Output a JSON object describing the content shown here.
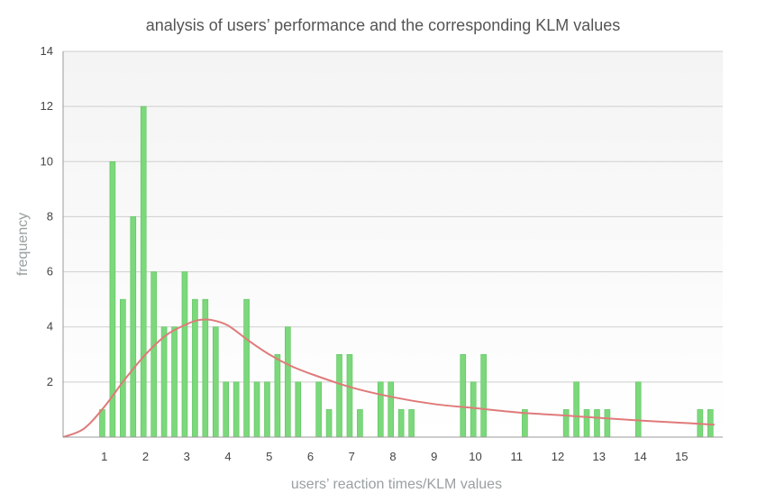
{
  "chart_data": {
    "type": "bar",
    "title": "analysis of users’ performance and the corresponding KLM values",
    "xlabel": "users’ reaction times/KLM values",
    "ylabel": "frequency",
    "xlim": [
      0,
      16
    ],
    "ylim": [
      0,
      14
    ],
    "xticks": [
      1,
      2,
      3,
      4,
      5,
      6,
      7,
      8,
      9,
      10,
      11,
      12,
      13,
      14,
      15
    ],
    "yticks": [
      2,
      4,
      6,
      8,
      10,
      12,
      14
    ],
    "grid": true,
    "legend": "none",
    "colors": {
      "bars": "#7bd87b",
      "bar_edge": "#5cc45c",
      "curve": "#e07a7a"
    },
    "series": [
      {
        "type": "bar",
        "x": [
          0.95,
          1.2,
          1.45,
          1.7,
          1.95,
          2.2,
          2.45,
          2.7,
          2.95,
          3.2,
          3.45,
          3.7,
          3.95,
          4.2,
          4.45,
          4.7,
          4.95,
          5.2,
          5.45,
          5.7,
          6.2,
          6.45,
          6.7,
          6.95,
          7.2,
          7.7,
          7.95,
          8.2,
          8.45,
          9.7,
          9.95,
          10.2,
          11.2,
          12.2,
          12.45,
          12.7,
          12.95,
          13.2,
          13.95,
          15.45,
          15.7
        ],
        "values": [
          1,
          10,
          5,
          8,
          12,
          6,
          4,
          4,
          6,
          5,
          5,
          4,
          2,
          2,
          5,
          2,
          2,
          3,
          4,
          2,
          2,
          1,
          3,
          3,
          1,
          2,
          2,
          1,
          1,
          3,
          2,
          3,
          1,
          1,
          2,
          1,
          1,
          1,
          2,
          1,
          1
        ]
      },
      {
        "type": "line",
        "x": [
          0,
          0.5,
          1.0,
          1.5,
          2.0,
          2.5,
          3.0,
          3.3,
          3.6,
          4.0,
          4.5,
          5.0,
          5.5,
          6.0,
          7.0,
          8.0,
          9.0,
          10.0,
          11.0,
          12.0,
          13.0,
          14.0,
          15.0,
          15.8
        ],
        "values": [
          0,
          0.3,
          1.1,
          2.1,
          3.0,
          3.7,
          4.1,
          4.25,
          4.25,
          4.05,
          3.5,
          3.0,
          2.6,
          2.3,
          1.8,
          1.45,
          1.2,
          1.05,
          0.9,
          0.8,
          0.7,
          0.6,
          0.52,
          0.45
        ]
      }
    ]
  }
}
